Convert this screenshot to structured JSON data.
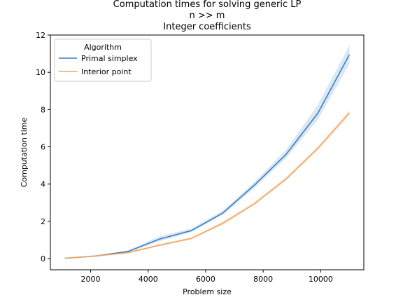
{
  "chart_data": {
    "type": "line",
    "title": [
      "Computation times for solving generic LP",
      "n >> m",
      "Integer coefficients"
    ],
    "xlabel": "Problem size",
    "ylabel": "Computation time",
    "xlim": [
      600,
      11500
    ],
    "ylim": [
      -0.6,
      12
    ],
    "xticks": [
      2000,
      4000,
      6000,
      8000,
      10000
    ],
    "yticks": [
      0,
      2,
      4,
      6,
      8,
      10,
      12
    ],
    "grid": false,
    "legend": {
      "title": "Algorithm",
      "position": "top-left"
    },
    "x": [
      1100,
      2200,
      3300,
      4400,
      5500,
      6600,
      7700,
      8800,
      9900,
      11000
    ],
    "series": [
      {
        "name": "Primal simplex",
        "color": "#3a7fc4",
        "values": [
          0.02,
          0.14,
          0.38,
          1.05,
          1.5,
          2.45,
          3.95,
          5.6,
          7.8,
          10.95
        ],
        "lower": [
          0.0,
          0.11,
          0.33,
          0.93,
          1.42,
          2.35,
          3.8,
          5.4,
          7.45,
          10.45
        ],
        "upper": [
          0.04,
          0.18,
          0.45,
          1.2,
          1.62,
          2.58,
          4.12,
          5.85,
          8.25,
          11.45
        ]
      },
      {
        "name": "Interior point",
        "color": "#f0a464",
        "values": [
          0.02,
          0.14,
          0.32,
          0.72,
          1.08,
          1.9,
          2.95,
          4.28,
          5.92,
          7.82
        ],
        "lower": [
          0.0,
          0.11,
          0.29,
          0.66,
          1.02,
          1.8,
          2.87,
          4.18,
          5.8,
          7.65
        ],
        "upper": [
          0.04,
          0.17,
          0.36,
          0.8,
          1.15,
          2.0,
          3.05,
          4.4,
          6.05,
          8.0
        ]
      }
    ]
  }
}
